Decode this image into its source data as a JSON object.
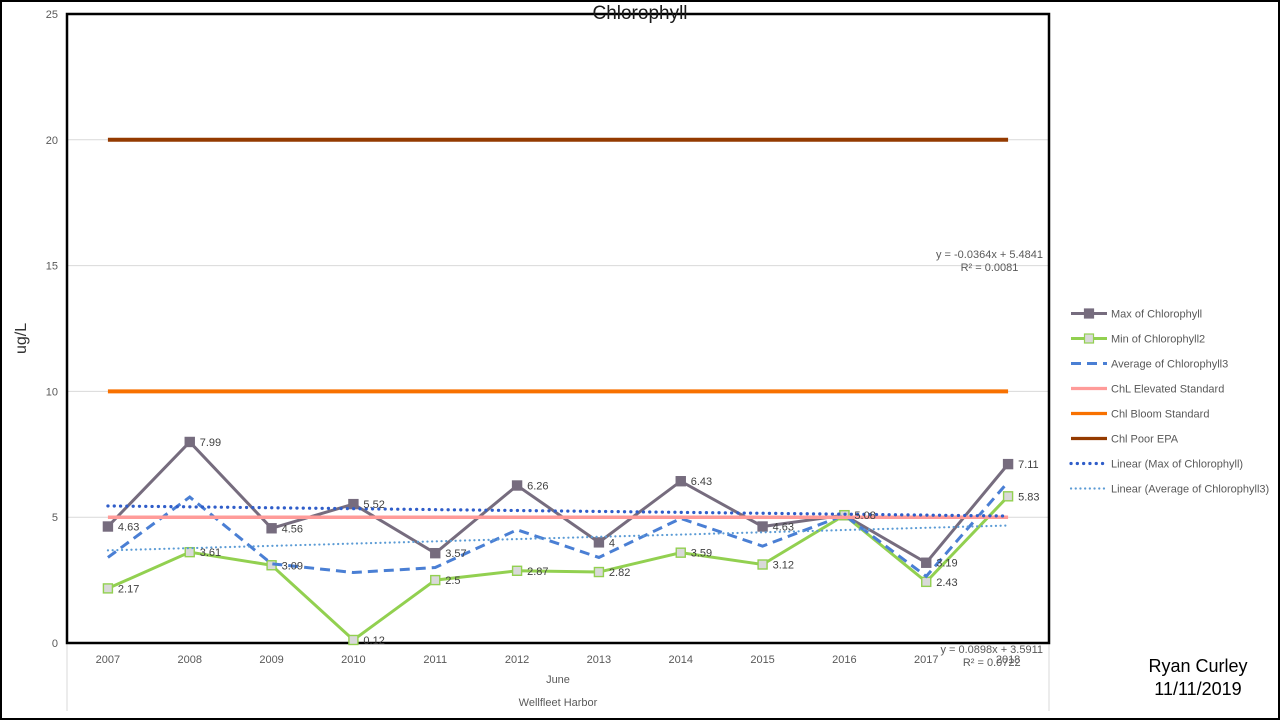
{
  "page": {
    "footer": {
      "author": "Ryan Curley",
      "date": "11/11/2019"
    }
  },
  "chart_data": {
    "type": "line",
    "title": "Chlorophyll",
    "xlabel": "",
    "ylabel": "ug/L",
    "ylim": [
      0,
      25
    ],
    "y_ticks": [
      0,
      5,
      10,
      15,
      20,
      25
    ],
    "grid": true,
    "legend_position": "right",
    "grid_color": "#d9d9d9",
    "tick_color": "#595959",
    "data_label_color": "#404040",
    "legend_text_color": "#595959",
    "categories": [
      "2007",
      "2008",
      "2009",
      "2010",
      "2011",
      "2012",
      "2013",
      "2014",
      "2015",
      "2016",
      "2017",
      "2018"
    ],
    "x_axis_group_labels": [
      "June",
      "Wellfleet Harbor"
    ],
    "series": [
      {
        "name": "Max of Chlorophyll",
        "style": "solid-marker",
        "color": "#766c7e",
        "marker_fill": "#766c7e",
        "marker_stroke": "#766c7e",
        "width": 3,
        "values": [
          4.63,
          7.99,
          4.56,
          5.52,
          3.57,
          6.26,
          4,
          6.43,
          4.63,
          5.08,
          3.19,
          7.11
        ],
        "data_labels": [
          "4.63",
          "7.99",
          "4.56",
          "5.52",
          "3.57",
          "6.26",
          "4",
          "6.43",
          "4.63",
          "5.08",
          "3.19",
          "7.11"
        ]
      },
      {
        "name": "Min of Chlorophyll2",
        "style": "solid-marker",
        "color": "#92d050",
        "marker_fill": "#d9d9d9",
        "marker_stroke": "#92d050",
        "width": 3,
        "values": [
          2.17,
          3.61,
          3.09,
          0.12,
          2.5,
          2.87,
          2.82,
          3.59,
          3.12,
          5.08,
          2.43,
          5.83
        ],
        "data_labels": [
          "2.17",
          "3.61",
          "3.09",
          "0.12",
          "2.5",
          "2.87",
          "2.82",
          "3.59",
          "3.12",
          null,
          "2.43",
          "5.83"
        ]
      },
      {
        "name": "Average of Chlorophyll3",
        "style": "dashed",
        "color": "#4a7fd4",
        "width": 3,
        "values": [
          3.4,
          5.8,
          3.15,
          2.8,
          3.0,
          4.5,
          3.4,
          4.95,
          3.85,
          5.08,
          2.65,
          6.4
        ]
      },
      {
        "name": "ChL Elevated Standard",
        "style": "solid",
        "color": "#ff9b99",
        "width": 3.5,
        "constant": 5
      },
      {
        "name": "Chl Bloom Standard",
        "style": "solid",
        "color": "#f87100",
        "width": 4,
        "constant": 10
      },
      {
        "name": "Chl Poor EPA",
        "style": "solid",
        "color": "#943a00",
        "width": 4,
        "constant": 20
      },
      {
        "name": "Linear (Max of Chlorophyll)",
        "style": "dotted",
        "color": "#2f5dc9",
        "width": 3.2,
        "trend": {
          "slope": -0.0364,
          "intercept": 5.4841
        }
      },
      {
        "name": "Linear (Average of Chlorophyll3)",
        "style": "dotted-fine",
        "color": "#5b9bd5",
        "width": 2.2,
        "trend": {
          "slope": 0.0898,
          "intercept": 3.5911
        }
      }
    ],
    "trend_annotations": [
      {
        "equation": "y = -0.0364x + 5.4841",
        "r2": "R² = 0.0081"
      },
      {
        "equation": "y = 0.0898x + 3.5911",
        "r2": "R² = 0.0722"
      }
    ]
  }
}
